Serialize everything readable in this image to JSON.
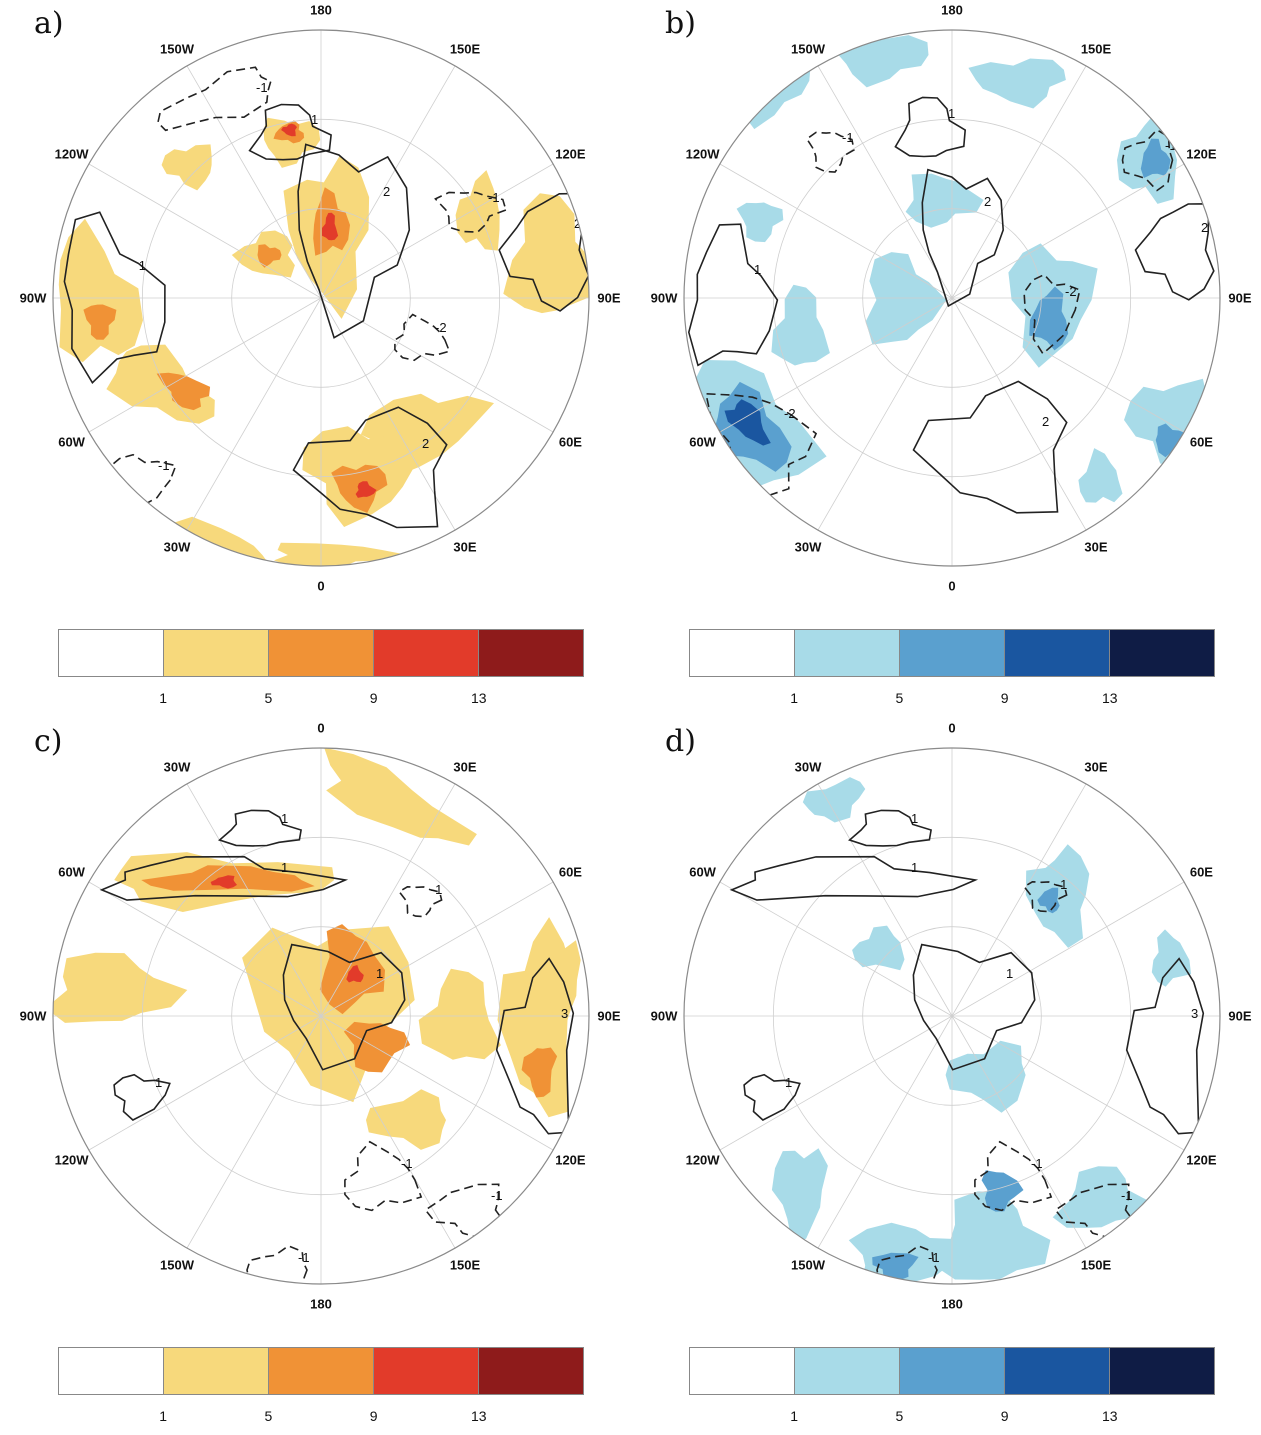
{
  "panels": [
    {
      "label": "a)",
      "shading": "warm",
      "lon_labels": [
        "180",
        "150E",
        "120E",
        "90E",
        "60E",
        "30E",
        "0",
        "30W",
        "60W",
        "90W",
        "120W",
        "150W"
      ],
      "colorbar": {
        "colors": [
          "#ffffff",
          "#f7d97c",
          "#f09236",
          "#e23b2a",
          "#8e1b1b"
        ],
        "ticks": [
          "1",
          "5",
          "9",
          "13"
        ]
      }
    },
    {
      "label": "b)",
      "shading": "cool",
      "lon_labels": [
        "180",
        "150E",
        "120E",
        "90E",
        "60E",
        "30E",
        "0",
        "30W",
        "60W",
        "90W",
        "120W",
        "150W"
      ],
      "colorbar": {
        "colors": [
          "#ffffff",
          "#a8dbe8",
          "#5aa0cf",
          "#1a56a0",
          "#0f1c45"
        ],
        "ticks": [
          "1",
          "5",
          "9",
          "13"
        ]
      }
    },
    {
      "label": "c)",
      "shading": "warm",
      "lon_labels": [
        "0",
        "30E",
        "60E",
        "90E",
        "120E",
        "150E",
        "180",
        "150W",
        "120W",
        "90W",
        "60W",
        "30W"
      ],
      "colorbar": {
        "colors": [
          "#ffffff",
          "#f7d97c",
          "#f09236",
          "#e23b2a",
          "#8e1b1b"
        ],
        "ticks": [
          "1",
          "5",
          "9",
          "13"
        ]
      }
    },
    {
      "label": "d)",
      "shading": "cool",
      "lon_labels": [
        "0",
        "30E",
        "60E",
        "90E",
        "120E",
        "150E",
        "180",
        "150W",
        "120W",
        "90W",
        "60W",
        "30W"
      ],
      "colorbar": {
        "colors": [
          "#ffffff",
          "#a8dbe8",
          "#5aa0cf",
          "#1a56a0",
          "#0f1c45"
        ],
        "ticks": [
          "1",
          "5",
          "9",
          "13"
        ]
      }
    }
  ],
  "contour_labels": [
    "1",
    "2",
    "3",
    "-1",
    "-2"
  ]
}
